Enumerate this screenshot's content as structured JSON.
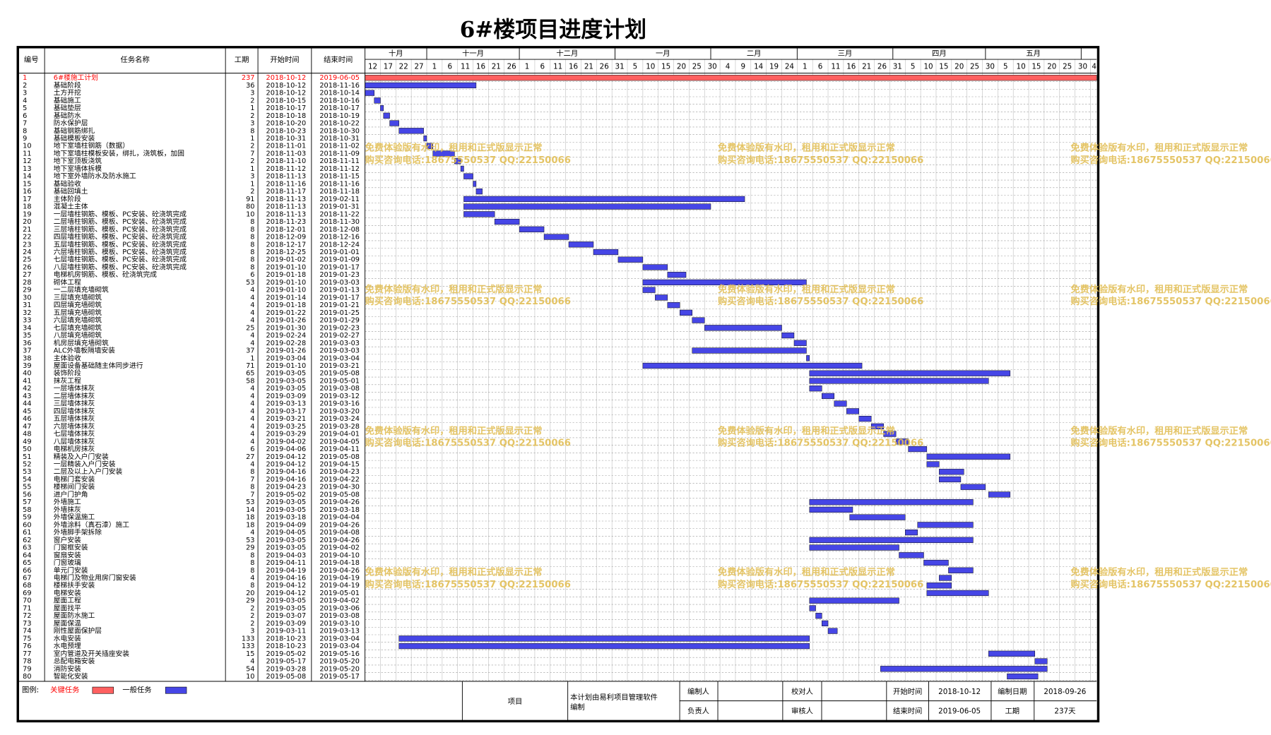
{
  "title": "6#楼项目进度计划",
  "columns": [
    "编号",
    "任务名称",
    "工期",
    "开始时间",
    "结束时间"
  ],
  "months": [
    "十月",
    "十一月",
    "十二月",
    "一月",
    "二月",
    "三月",
    "四月",
    "五月"
  ],
  "days": [
    12,
    17,
    22,
    27,
    1,
    6,
    11,
    16,
    21,
    26,
    1,
    6,
    11,
    16,
    21,
    26,
    31,
    5,
    10,
    15,
    20,
    25,
    30,
    4,
    9,
    14,
    19,
    24,
    1,
    6,
    11,
    16,
    21,
    26,
    31,
    5,
    10,
    15,
    20,
    25,
    30,
    5,
    10,
    15,
    20,
    25,
    30,
    4
  ],
  "critical": [
    1
  ],
  "tasks": [
    [
      1,
      "6#楼施工计划",
      237,
      "2018-10-12",
      "2019-06-05"
    ],
    [
      2,
      "基础阶段",
      36,
      "2018-10-12",
      "2018-11-16"
    ],
    [
      3,
      "土方开挖",
      3,
      "2018-10-12",
      "2018-10-14"
    ],
    [
      4,
      "基础施工",
      2,
      "2018-10-15",
      "2018-10-16"
    ],
    [
      5,
      "基础垫层",
      1,
      "2018-10-17",
      "2018-10-17"
    ],
    [
      6,
      "基础防水",
      2,
      "2018-10-18",
      "2018-10-19"
    ],
    [
      7,
      "防水保护层",
      3,
      "2018-10-20",
      "2018-10-22"
    ],
    [
      8,
      "基础钢筋绑扎",
      8,
      "2018-10-23",
      "2018-10-30"
    ],
    [
      9,
      "基础模板安装",
      1,
      "2018-10-31",
      "2018-10-31"
    ],
    [
      10,
      "地下室墙柱钢筋（数据）",
      2,
      "2018-11-01",
      "2018-11-02"
    ],
    [
      11,
      "地下室墙柱模板安装，绑扎，浇筑板，加固",
      7,
      "2018-11-03",
      "2018-11-09"
    ],
    [
      12,
      "地下室顶板浇筑",
      2,
      "2018-11-10",
      "2018-11-11"
    ],
    [
      13,
      "地下室墙体拆模",
      1,
      "2018-11-12",
      "2018-11-12"
    ],
    [
      14,
      "地下室外墙防水及防水施工",
      3,
      "2018-11-13",
      "2018-11-15"
    ],
    [
      15,
      "基础验收",
      1,
      "2018-11-16",
      "2018-11-16"
    ],
    [
      16,
      "基础回填土",
      2,
      "2018-11-17",
      "2018-11-18"
    ],
    [
      17,
      "主体阶段",
      91,
      "2018-11-13",
      "2019-02-11"
    ],
    [
      18,
      "混凝土主体",
      80,
      "2018-11-13",
      "2019-01-31"
    ],
    [
      19,
      "一层墙柱钢筋、模板、PC安装、砼浇筑完成",
      10,
      "2018-11-13",
      "2018-11-22"
    ],
    [
      20,
      "二层墙柱钢筋、模板、PC安装、砼浇筑完成",
      8,
      "2018-11-23",
      "2018-11-30"
    ],
    [
      21,
      "三层墙柱钢筋、模板、PC安装、砼浇筑完成",
      8,
      "2018-12-01",
      "2018-12-08"
    ],
    [
      22,
      "四层墙柱钢筋、模板、PC安装、砼浇筑完成",
      8,
      "2018-12-09",
      "2018-12-16"
    ],
    [
      23,
      "五层墙柱钢筋、模板、PC安装、砼浇筑完成",
      8,
      "2018-12-17",
      "2018-12-24"
    ],
    [
      24,
      "六层墙柱钢筋、模板、PC安装、砼浇筑完成",
      8,
      "2018-12-25",
      "2019-01-01"
    ],
    [
      25,
      "七层墙柱钢筋、模板、PC安装、砼浇筑完成",
      8,
      "2019-01-02",
      "2019-01-09"
    ],
    [
      26,
      "八层墙柱钢筋、模板、PC安装、砼浇筑完成",
      8,
      "2019-01-10",
      "2019-01-17"
    ],
    [
      27,
      "电梯机房钢筋、模板、砼浇筑完成",
      6,
      "2019-01-18",
      "2019-01-23"
    ],
    [
      28,
      "砌体工程",
      53,
      "2019-01-10",
      "2019-03-03"
    ],
    [
      29,
      "一二层填充墙砌筑",
      4,
      "2019-01-10",
      "2019-01-13"
    ],
    [
      30,
      "三层填充墙砌筑",
      4,
      "2019-01-14",
      "2019-01-17"
    ],
    [
      31,
      "四层填充墙砌筑",
      4,
      "2019-01-18",
      "2019-01-21"
    ],
    [
      32,
      "五层填充墙砌筑",
      4,
      "2019-01-22",
      "2019-01-25"
    ],
    [
      33,
      "六层填充墙砌筑",
      4,
      "2019-01-26",
      "2019-01-29"
    ],
    [
      34,
      "七层填充墙砌筑",
      25,
      "2019-01-30",
      "2019-02-23"
    ],
    [
      35,
      "八层填充墙砌筑",
      4,
      "2019-02-24",
      "2019-02-27"
    ],
    [
      36,
      "机房层填充墙砌筑",
      4,
      "2019-02-28",
      "2019-03-03"
    ],
    [
      37,
      "ALC外墙板隔墙安装",
      37,
      "2019-01-26",
      "2019-03-03"
    ],
    [
      38,
      "主体验收",
      1,
      "2019-03-04",
      "2019-03-04"
    ],
    [
      39,
      "屋面设备基础随主体同步进行",
      71,
      "2019-01-10",
      "2019-03-21"
    ],
    [
      40,
      "装饰阶段",
      65,
      "2019-03-05",
      "2019-05-08"
    ],
    [
      41,
      "抹灰工程",
      58,
      "2019-03-05",
      "2019-05-01"
    ],
    [
      42,
      "一层墙体抹灰",
      4,
      "2019-03-05",
      "2019-03-08"
    ],
    [
      43,
      "二层墙体抹灰",
      4,
      "2019-03-09",
      "2019-03-12"
    ],
    [
      44,
      "三层墙体抹灰",
      4,
      "2019-03-13",
      "2019-03-16"
    ],
    [
      45,
      "四层墙体抹灰",
      4,
      "2019-03-17",
      "2019-03-20"
    ],
    [
      46,
      "五层墙体抹灰",
      4,
      "2019-03-21",
      "2019-03-24"
    ],
    [
      47,
      "六层墙体抹灰",
      4,
      "2019-03-25",
      "2019-03-28"
    ],
    [
      48,
      "七层墙体抹灰",
      4,
      "2019-03-29",
      "2019-04-01"
    ],
    [
      49,
      "八层墙体抹灰",
      4,
      "2019-04-02",
      "2019-04-05"
    ],
    [
      50,
      "电梯机房抹灰",
      6,
      "2019-04-06",
      "2019-04-11"
    ],
    [
      51,
      "精装及入户门安装",
      27,
      "2019-04-12",
      "2019-05-08"
    ],
    [
      52,
      "一层精装入户门安装",
      4,
      "2019-04-12",
      "2019-04-15"
    ],
    [
      53,
      "二层及以上入户门安装",
      8,
      "2019-04-16",
      "2019-04-23"
    ],
    [
      54,
      "电梯门套安装",
      7,
      "2019-04-16",
      "2019-04-22"
    ],
    [
      55,
      "楼梯间门安装",
      8,
      "2019-04-23",
      "2019-04-30"
    ],
    [
      56,
      "进户门护角",
      7,
      "2019-05-02",
      "2019-05-08"
    ],
    [
      57,
      "外墙施工",
      53,
      "2019-03-05",
      "2019-04-26"
    ],
    [
      58,
      "外墙抹灰",
      14,
      "2019-03-05",
      "2019-03-18"
    ],
    [
      59,
      "外墙保温施工",
      18,
      "2019-03-18",
      "2019-04-04"
    ],
    [
      60,
      "外墙涂料（真石漆）施工",
      18,
      "2019-04-09",
      "2019-04-26"
    ],
    [
      61,
      "外墙脚手架拆除",
      4,
      "2019-04-05",
      "2019-04-08"
    ],
    [
      62,
      "窗户安装",
      53,
      "2019-03-05",
      "2019-04-26"
    ],
    [
      63,
      "门窗框安装",
      29,
      "2019-03-05",
      "2019-04-02"
    ],
    [
      64,
      "窗扇安装",
      8,
      "2019-04-03",
      "2019-04-10"
    ],
    [
      65,
      "门窗玻璃",
      8,
      "2019-04-11",
      "2019-04-18"
    ],
    [
      66,
      "单元门安装",
      8,
      "2019-04-19",
      "2019-04-26"
    ],
    [
      67,
      "电梯门及物业用房门窗安装",
      4,
      "2019-04-16",
      "2019-04-19"
    ],
    [
      68,
      "楼梯扶手安装",
      8,
      "2019-04-12",
      "2019-04-19"
    ],
    [
      69,
      "电梯安装",
      20,
      "2019-04-12",
      "2019-05-01"
    ],
    [
      70,
      "屋面工程",
      29,
      "2019-03-05",
      "2019-04-02"
    ],
    [
      71,
      "屋面找平",
      2,
      "2019-03-05",
      "2019-03-06"
    ],
    [
      72,
      "屋面防水施工",
      2,
      "2019-03-07",
      "2019-03-08"
    ],
    [
      73,
      "屋面保温",
      2,
      "2019-03-09",
      "2019-03-10"
    ],
    [
      74,
      "刚性屋面保护层",
      3,
      "2019-03-11",
      "2019-03-13"
    ],
    [
      75,
      "水电安装",
      133,
      "2018-10-23",
      "2019-03-04"
    ],
    [
      76,
      "水电预埋",
      133,
      "2018-10-23",
      "2019-03-04"
    ],
    [
      77,
      "室内管道及开关插座安装",
      15,
      "2019-05-02",
      "2019-05-16"
    ],
    [
      78,
      "总配电箱安装",
      4,
      "2019-05-17",
      "2019-05-20"
    ],
    [
      79,
      "消防安装",
      54,
      "2019-03-28",
      "2019-05-20"
    ],
    [
      80,
      "智能化安装",
      10,
      "2019-05-08",
      "2019-05-17"
    ]
  ],
  "legend": {
    "label": "图例:",
    "critical": "关键任务",
    "critical_color": "#ff6060",
    "normal": "一般任务",
    "normal_color": "#4646e6"
  },
  "footer": {
    "project": "项目",
    "note": "本计划由易利项目管理软件编制",
    "editor": "编制人",
    "owner": "负责人",
    "checker": "校对人",
    "reviewer": "审核人",
    "start_label": "开始时间",
    "start": "2018-10-12",
    "end_label": "结束时间",
    "end": "2019-06-05",
    "date_label": "编制日期",
    "date": "2018-09-26",
    "duration_label": "工期",
    "duration": "237天"
  },
  "watermark": [
    "免费体验版有水印，租用和正式版显示正常",
    "购买咨询电话:18675550537 QQ:22150066"
  ]
}
